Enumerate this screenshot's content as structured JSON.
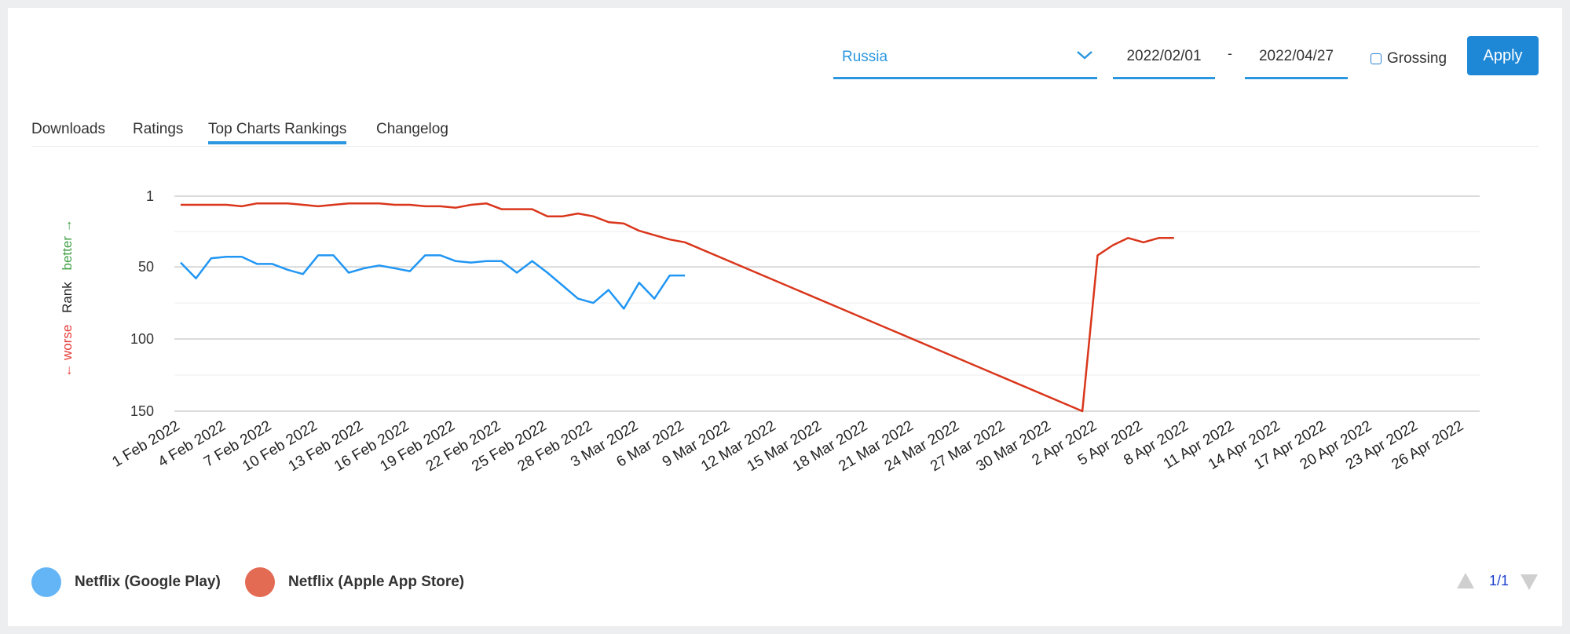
{
  "controls": {
    "country": "Russia",
    "date_from": "2022/02/01",
    "date_sep": "-",
    "date_to": "2022/04/27",
    "grossing_label": "Grossing",
    "apply_label": "Apply"
  },
  "tabs": [
    {
      "label": "Downloads"
    },
    {
      "label": "Ratings"
    },
    {
      "label": "Top Charts Rankings",
      "active": true
    },
    {
      "label": "Changelog"
    }
  ],
  "legend": [
    {
      "label": "Netflix (Google Play)",
      "color": "#64b5f6"
    },
    {
      "label": "Netflix (Apple App Store)",
      "color": "#e36a53"
    }
  ],
  "pagination": {
    "text": "1/1"
  },
  "chart_data": {
    "type": "line",
    "ylabel_worse": "← worse",
    "ylabel_rank": "Rank",
    "ylabel_better": "better →",
    "y_reversed": true,
    "ylim": [
      1,
      150
    ],
    "yticks": [
      1,
      50,
      100,
      150
    ],
    "x_range": [
      "2022-02-01",
      "2022-04-27"
    ],
    "xticks": [
      "1 Feb 2022",
      "4 Feb 2022",
      "7 Feb 2022",
      "10 Feb 2022",
      "13 Feb 2022",
      "16 Feb 2022",
      "19 Feb 2022",
      "22 Feb 2022",
      "25 Feb 2022",
      "28 Feb 2022",
      "3 Mar 2022",
      "6 Mar 2022",
      "9 Mar 2022",
      "12 Mar 2022",
      "15 Mar 2022",
      "18 Mar 2022",
      "21 Mar 2022",
      "24 Mar 2022",
      "27 Mar 2022",
      "30 Mar 2022",
      "2 Apr 2022",
      "5 Apr 2022",
      "8 Apr 2022",
      "11 Apr 2022",
      "14 Apr 2022",
      "17 Apr 2022",
      "20 Apr 2022",
      "23 Apr 2022",
      "26 Apr 2022"
    ],
    "grid": true,
    "series": [
      {
        "name": "Netflix (Google Play)",
        "color": "#2196f3",
        "points": [
          [
            "2022-02-01",
            47
          ],
          [
            "2022-02-02",
            58
          ],
          [
            "2022-02-03",
            44
          ],
          [
            "2022-02-04",
            43
          ],
          [
            "2022-02-05",
            43
          ],
          [
            "2022-02-06",
            48
          ],
          [
            "2022-02-07",
            48
          ],
          [
            "2022-02-08",
            52
          ],
          [
            "2022-02-09",
            55
          ],
          [
            "2022-02-10",
            42
          ],
          [
            "2022-02-11",
            42
          ],
          [
            "2022-02-12",
            54
          ],
          [
            "2022-02-13",
            51
          ],
          [
            "2022-02-14",
            49
          ],
          [
            "2022-02-15",
            51
          ],
          [
            "2022-02-16",
            53
          ],
          [
            "2022-02-17",
            42
          ],
          [
            "2022-02-18",
            42
          ],
          [
            "2022-02-19",
            46
          ],
          [
            "2022-02-20",
            47
          ],
          [
            "2022-02-21",
            46
          ],
          [
            "2022-02-22",
            46
          ],
          [
            "2022-02-23",
            54
          ],
          [
            "2022-02-24",
            46
          ],
          [
            "2022-02-25",
            54
          ],
          [
            "2022-02-26",
            63
          ],
          [
            "2022-02-27",
            72
          ],
          [
            "2022-02-28",
            75
          ],
          [
            "2022-03-01",
            66
          ],
          [
            "2022-03-02",
            79
          ],
          [
            "2022-03-03",
            61
          ],
          [
            "2022-03-04",
            72
          ],
          [
            "2022-03-05",
            56
          ],
          [
            "2022-03-06",
            56
          ]
        ]
      },
      {
        "name": "Netflix (Apple App Store)",
        "color": "#d9361b",
        "points": [
          [
            "2022-02-01",
            7
          ],
          [
            "2022-02-02",
            7
          ],
          [
            "2022-02-03",
            7
          ],
          [
            "2022-02-04",
            7
          ],
          [
            "2022-02-05",
            8
          ],
          [
            "2022-02-06",
            6
          ],
          [
            "2022-02-07",
            6
          ],
          [
            "2022-02-08",
            6
          ],
          [
            "2022-02-09",
            7
          ],
          [
            "2022-02-10",
            8
          ],
          [
            "2022-02-11",
            7
          ],
          [
            "2022-02-12",
            6
          ],
          [
            "2022-02-13",
            6
          ],
          [
            "2022-02-14",
            6
          ],
          [
            "2022-02-15",
            7
          ],
          [
            "2022-02-16",
            7
          ],
          [
            "2022-02-17",
            8
          ],
          [
            "2022-02-18",
            8
          ],
          [
            "2022-02-19",
            9
          ],
          [
            "2022-02-20",
            7
          ],
          [
            "2022-02-21",
            6
          ],
          [
            "2022-02-22",
            10
          ],
          [
            "2022-02-23",
            10
          ],
          [
            "2022-02-24",
            10
          ],
          [
            "2022-02-25",
            15
          ],
          [
            "2022-02-26",
            15
          ],
          [
            "2022-02-27",
            13
          ],
          [
            "2022-02-28",
            15
          ],
          [
            "2022-03-01",
            19
          ],
          [
            "2022-03-02",
            20
          ],
          [
            "2022-03-03",
            25
          ],
          [
            "2022-03-04",
            28
          ],
          [
            "2022-03-05",
            31
          ],
          [
            "2022-03-06",
            33
          ],
          [
            "2022-04-01",
            150
          ],
          [
            "2022-04-02",
            42
          ],
          [
            "2022-04-03",
            35
          ],
          [
            "2022-04-04",
            30
          ],
          [
            "2022-04-05",
            33
          ],
          [
            "2022-04-06",
            30
          ],
          [
            "2022-04-07",
            30
          ]
        ]
      }
    ]
  }
}
